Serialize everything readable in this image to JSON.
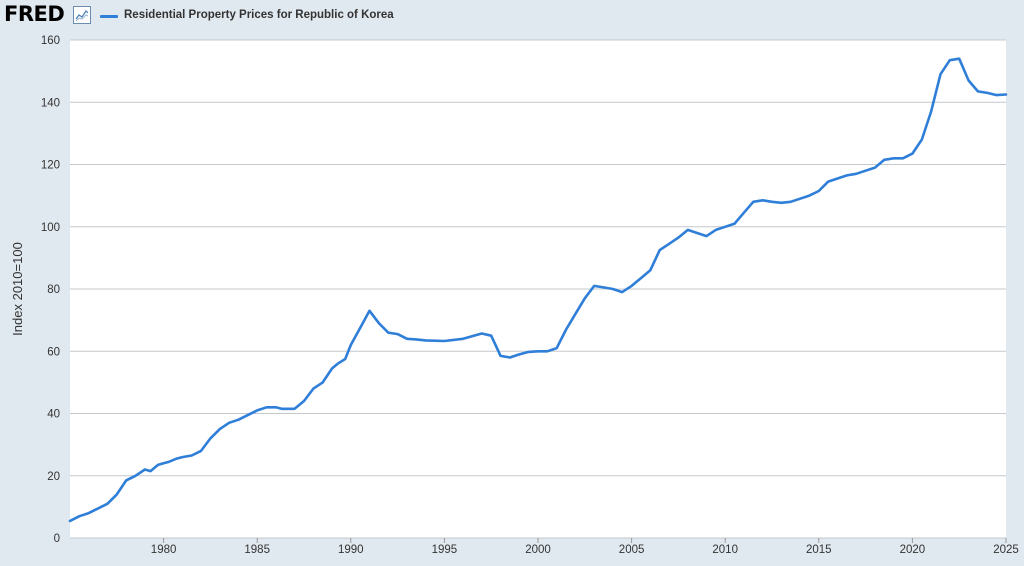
{
  "header": {
    "logo_text": "FRED",
    "legend_label": "Residential Property Prices for Republic of Korea",
    "line_color": "#2f7ed8",
    "logo_icon": "line-chart-icon"
  },
  "chart_data": {
    "type": "line",
    "title": "",
    "xlabel": "",
    "ylabel": "Index 2010=100",
    "xlim": [
      1975.0,
      2025.0
    ],
    "ylim": [
      0,
      160
    ],
    "y_ticks": [
      0,
      20,
      40,
      60,
      80,
      100,
      120,
      140,
      160
    ],
    "x_ticks": [
      1980,
      1985,
      1990,
      1995,
      2000,
      2005,
      2010,
      2015,
      2020,
      2025
    ],
    "grid": "horizontal",
    "legend_position": "top-left",
    "series": [
      {
        "name": "Residential Property Prices for Republic of Korea",
        "color": "#2f7ed8",
        "x": [
          1975.0,
          1975.5,
          1976.0,
          1976.5,
          1977.0,
          1977.5,
          1978.0,
          1978.5,
          1979.0,
          1979.3,
          1979.7,
          1980.0,
          1980.3,
          1980.7,
          1981.0,
          1981.5,
          1982.0,
          1982.5,
          1983.0,
          1983.5,
          1984.0,
          1984.5,
          1985.0,
          1985.5,
          1986.0,
          1986.3,
          1987.0,
          1987.5,
          1988.0,
          1988.5,
          1989.0,
          1989.3,
          1989.7,
          1990.0,
          1990.5,
          1991.0,
          1991.5,
          1992.0,
          1992.5,
          1993.0,
          1993.5,
          1994.0,
          1995.0,
          1996.0,
          1997.0,
          1997.5,
          1998.0,
          1998.5,
          1999.0,
          1999.5,
          2000.0,
          2000.5,
          2001.0,
          2001.5,
          2002.0,
          2002.5,
          2003.0,
          2003.5,
          2004.0,
          2004.5,
          2005.0,
          2005.5,
          2006.0,
          2006.5,
          2007.0,
          2007.5,
          2008.0,
          2008.5,
          2009.0,
          2009.5,
          2010.0,
          2010.5,
          2011.0,
          2011.5,
          2012.0,
          2012.5,
          2013.0,
          2013.5,
          2014.0,
          2014.5,
          2015.0,
          2015.5,
          2016.0,
          2016.5,
          2017.0,
          2017.5,
          2018.0,
          2018.5,
          2019.0,
          2019.5,
          2020.0,
          2020.5,
          2021.0,
          2021.5,
          2022.0,
          2022.5,
          2023.0,
          2023.5,
          2024.0,
          2024.5,
          2025.0
        ],
        "y": [
          5.5,
          7.0,
          8.0,
          9.5,
          11.0,
          14.0,
          18.5,
          20.0,
          22.0,
          21.5,
          23.5,
          24.0,
          24.5,
          25.5,
          26.0,
          26.5,
          28.0,
          32.0,
          35.0,
          37.0,
          38.0,
          39.5,
          41.0,
          42.0,
          42.0,
          41.5,
          41.5,
          44.0,
          48.0,
          50.0,
          54.5,
          56.0,
          57.5,
          62.0,
          67.5,
          73.0,
          69.0,
          66.0,
          65.5,
          64.0,
          63.8,
          63.5,
          63.3,
          64.0,
          65.7,
          65.0,
          58.5,
          58.0,
          59.0,
          59.8,
          60.0,
          60.0,
          61.0,
          67.0,
          72.0,
          77.0,
          81.0,
          80.5,
          80.0,
          79.0,
          81.0,
          83.5,
          86.0,
          92.5,
          94.5,
          96.5,
          99.0,
          98.0,
          97.0,
          99.0,
          100.0,
          101.0,
          104.5,
          108.0,
          108.5,
          108.0,
          107.7,
          108.0,
          109.0,
          110.0,
          111.5,
          114.5,
          115.5,
          116.5,
          117.0,
          118.0,
          119.0,
          121.5,
          122.0,
          122.0,
          123.5,
          128.0,
          137.0,
          149.0,
          153.5,
          154.0,
          147.0,
          143.5,
          143.0,
          142.3,
          142.5
        ]
      }
    ]
  }
}
